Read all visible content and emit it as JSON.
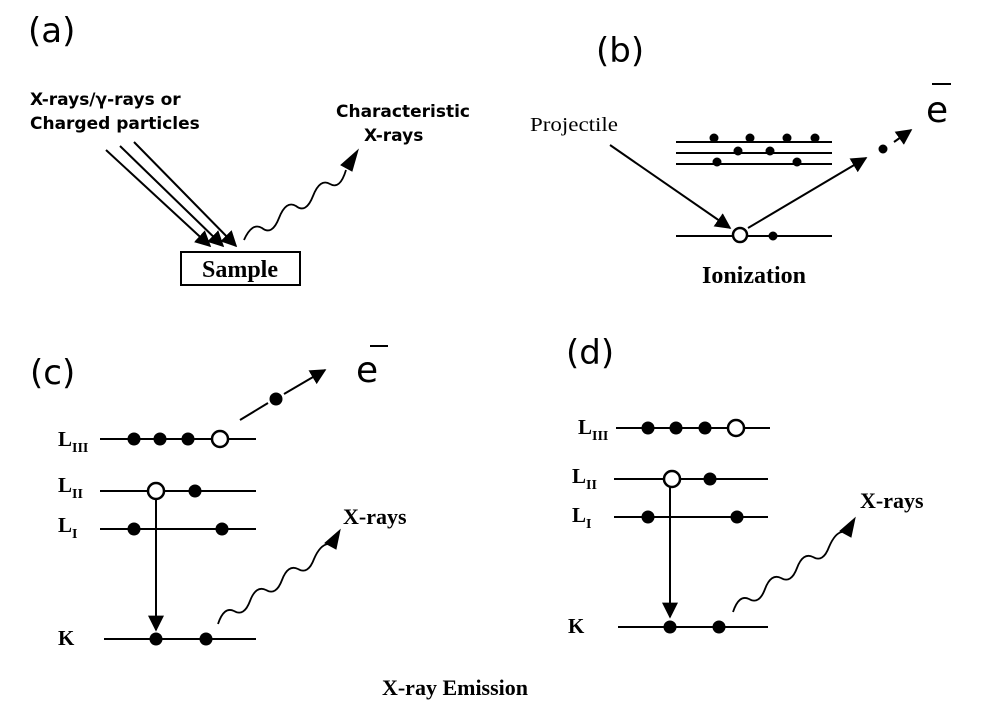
{
  "panels": {
    "a": {
      "label": "(a)",
      "source_line1": "X-rays/γ-rays or",
      "source_line2": "Charged particles",
      "output_line1": "Characteristic",
      "output_line2": "X-rays",
      "sample": "Sample"
    },
    "b": {
      "label": "(b)",
      "projectile": "Projectile",
      "electron": "e",
      "caption": "Ionization"
    },
    "c": {
      "label": "(c)",
      "electron": "e",
      "levels": {
        "L3": "L",
        "L3_sub": "III",
        "L2": "L",
        "L2_sub": "II",
        "L1": "L",
        "L1_sub": "I",
        "K": "K"
      },
      "xrays": "X-rays"
    },
    "d": {
      "label": "(d)",
      "levels": {
        "L3": "L",
        "L3_sub": "III",
        "L2": "L",
        "L2_sub": "II",
        "L1": "L",
        "L1_sub": "I",
        "K": "K"
      },
      "xrays": "X-rays"
    }
  },
  "caption": "X-ray Emission"
}
